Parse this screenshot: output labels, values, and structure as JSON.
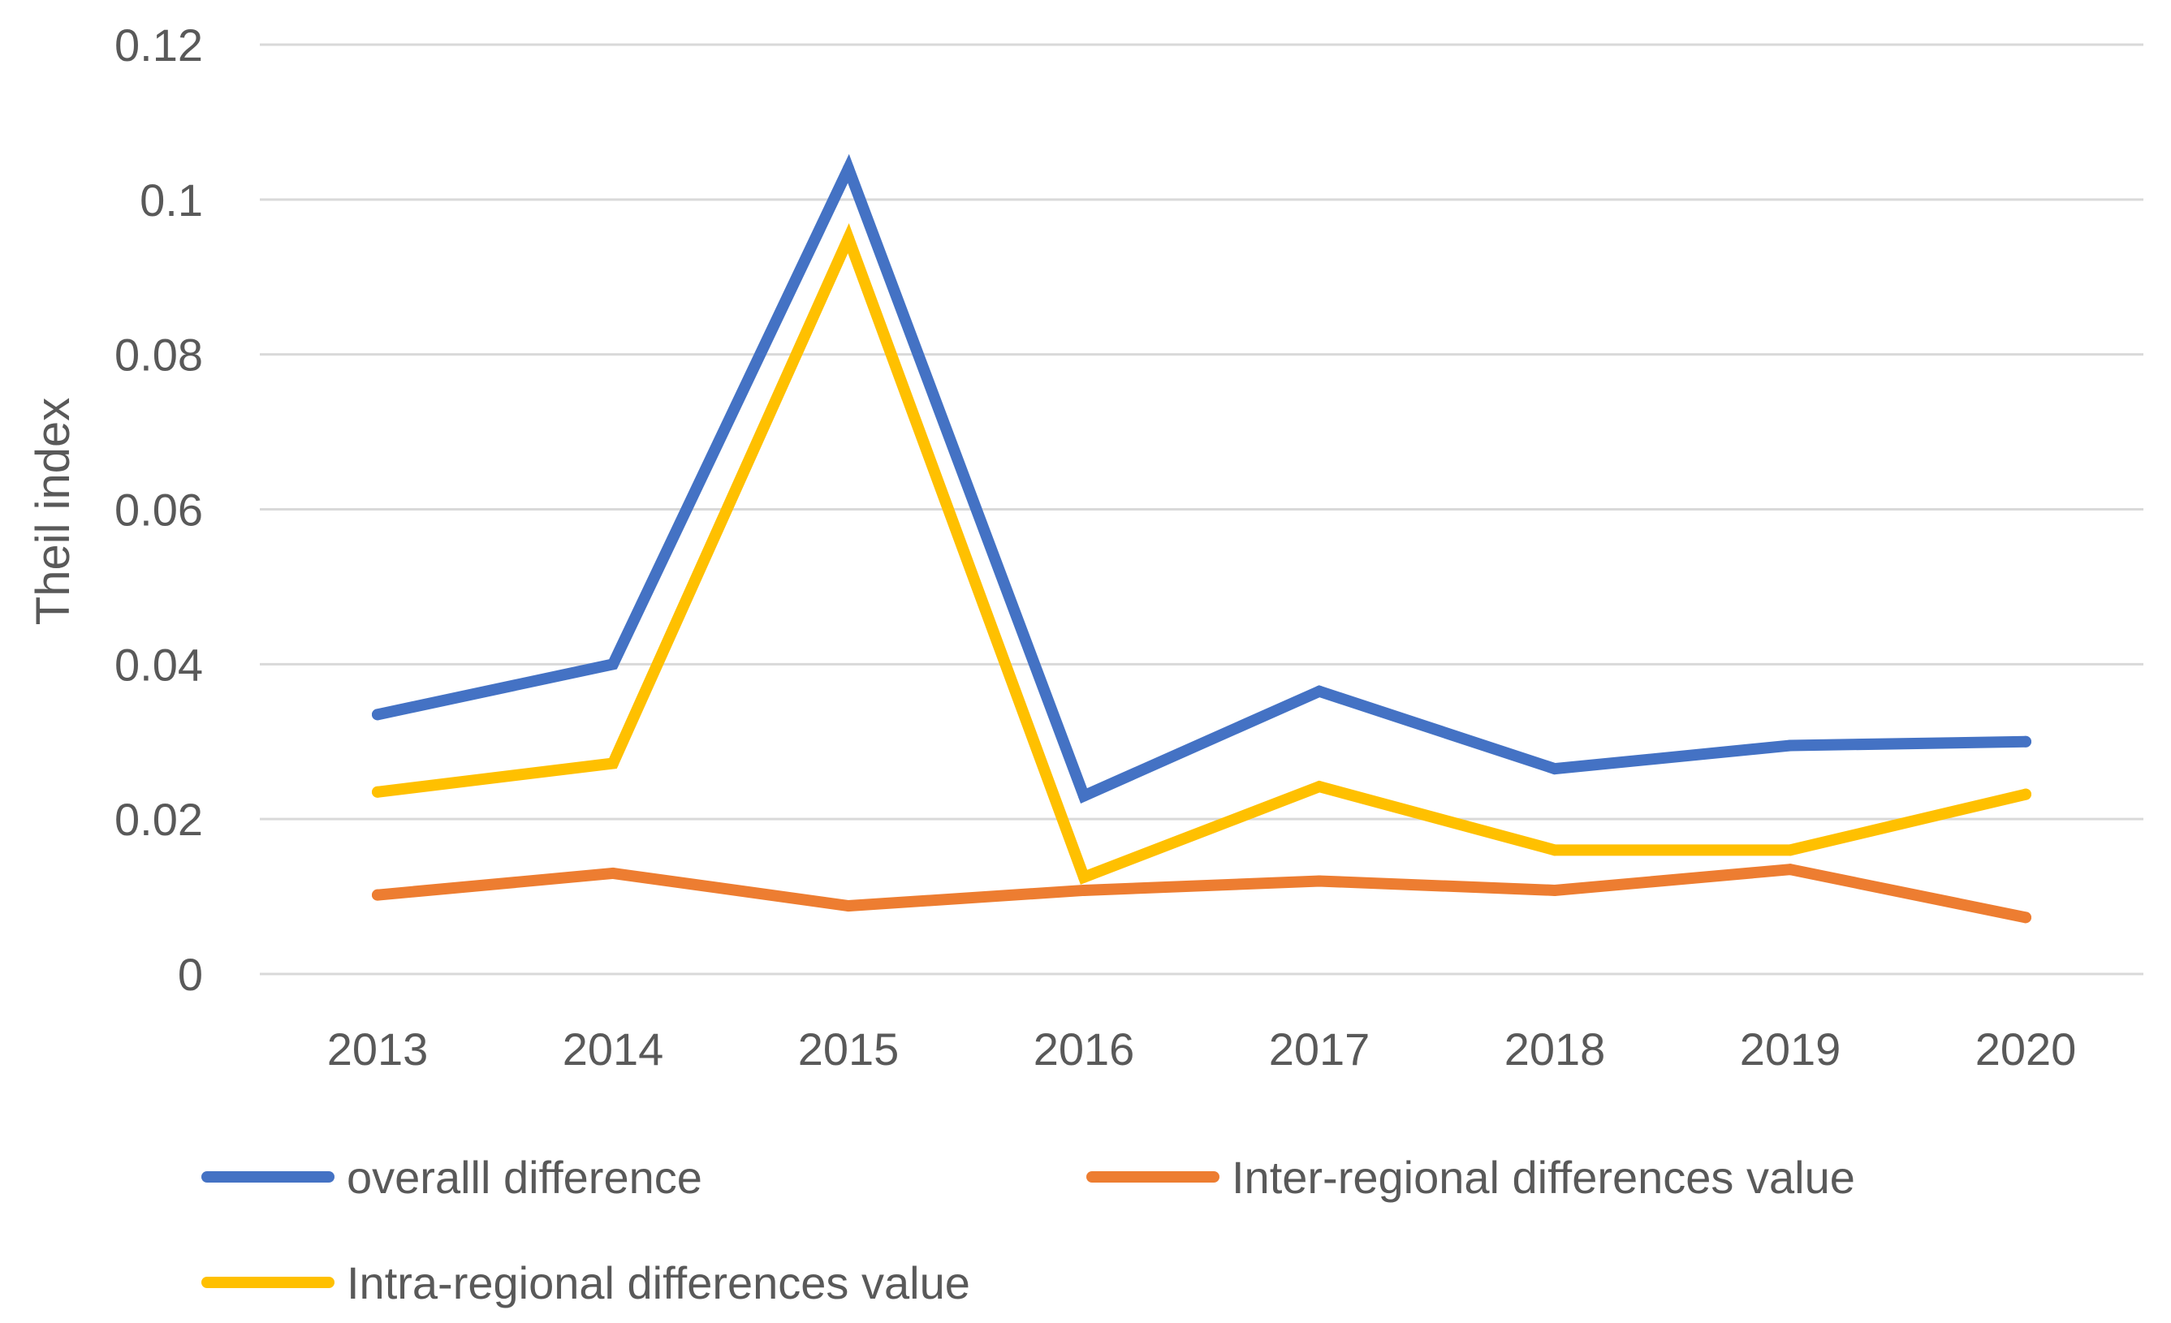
{
  "chart_data": {
    "type": "line",
    "title": "",
    "xlabel": "",
    "ylabel": "Theil index",
    "categories": [
      "2013",
      "2014",
      "2015",
      "2016",
      "2017",
      "2018",
      "2019",
      "2020"
    ],
    "ylim": [
      0,
      0.12
    ],
    "yticks": [
      "0",
      "0.02",
      "0.04",
      "0.06",
      "0.08",
      "0.1",
      "0.12"
    ],
    "grid": true,
    "legend_position": "bottom",
    "series": [
      {
        "name": "overalll difference",
        "color": "#4472C4",
        "values": [
          0.0335,
          0.04,
          0.104,
          0.023,
          0.0365,
          0.0265,
          0.0295,
          0.03
        ]
      },
      {
        "name": "Inter-regional differences value",
        "color": "#ED7D31",
        "values": [
          0.0102,
          0.013,
          0.0088,
          0.0108,
          0.012,
          0.0108,
          0.0135,
          0.0073
        ]
      },
      {
        "name": "Intra-regional differences value",
        "color": "#FFC000",
        "values": [
          0.0235,
          0.0272,
          0.095,
          0.0125,
          0.0242,
          0.016,
          0.016,
          0.0232
        ]
      }
    ]
  }
}
